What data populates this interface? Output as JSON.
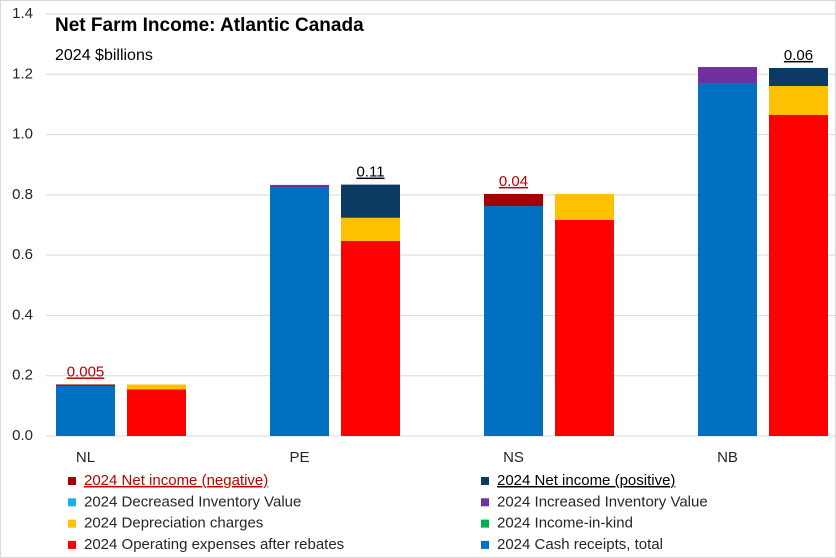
{
  "chart_data": {
    "type": "stacked-pair-bar",
    "title": "Net Farm Income: Atlantic Canada",
    "subtitle": "2024 $billions",
    "categories": [
      "NL",
      "PE",
      "NS",
      "NB"
    ],
    "ylim": [
      0,
      1.4
    ],
    "yticks": [
      {
        "value": 0,
        "label": "0.0"
      },
      0.2,
      0.4,
      0.6,
      0.8,
      {
        "value": 1,
        "label": "1.0"
      },
      1.2,
      1.4
    ],
    "grid": true,
    "legend": "bottom",
    "series": [
      {
        "name": "2024 Net income (negative)",
        "color": "#a50000",
        "label_color": "#c00000",
        "stack": "left",
        "labels": true,
        "values": [
          0.005,
          null,
          0.04,
          null
        ]
      },
      {
        "name": "2024 Net income (positive)",
        "color": "#0b3a63",
        "label_color": "#000000",
        "stack": "right",
        "labels": true,
        "values": [
          null,
          0.11,
          null,
          0.06
        ]
      },
      {
        "name": "2024 Decreased Inventory Value",
        "color": "#1ab0e8",
        "stack": "right",
        "values": [
          null,
          null,
          null,
          null
        ]
      },
      {
        "name": "2024 Increased Inventory Value",
        "color": "#7030a0",
        "stack": "left",
        "values": [
          null,
          0.007,
          null,
          0.053
        ]
      },
      {
        "name": "2024 Depreciation charges",
        "color": "#ffc000",
        "stack": "right",
        "values": [
          0.016,
          0.077,
          0.086,
          0.096
        ]
      },
      {
        "name": "2024 Income-in-kind",
        "color": "#00b050",
        "stack": "left",
        "values": [
          null,
          null,
          null,
          null
        ]
      },
      {
        "name": "2024 Operating expenses after rebates",
        "color": "#ff0000",
        "stack": "right",
        "values": [
          0.155,
          0.647,
          0.717,
          1.065
        ]
      },
      {
        "name": "2024 Cash receipts, total",
        "color": "#0070c0",
        "stack": "left",
        "values": [
          0.166,
          0.826,
          0.763,
          1.171
        ]
      }
    ]
  }
}
